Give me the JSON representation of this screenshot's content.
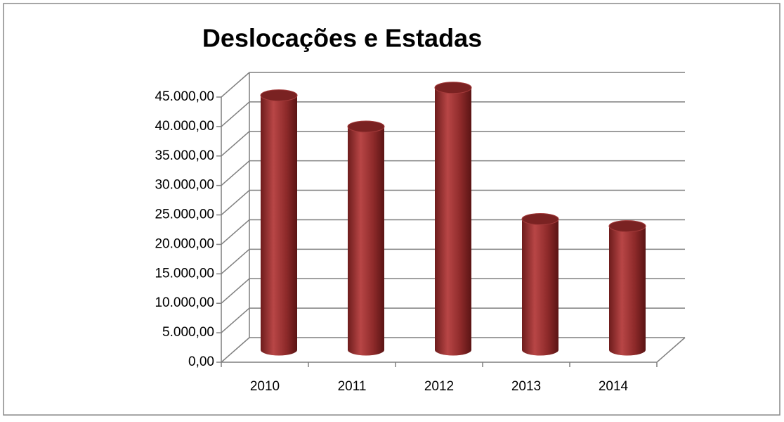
{
  "chart_data": {
    "type": "bar3d",
    "title": "Deslocações e Estadas",
    "categories": [
      "2010",
      "2011",
      "2012",
      "2013",
      "2014"
    ],
    "values": [
      43200,
      37900,
      44500,
      22200,
      21000
    ],
    "color": "#9b2f2f",
    "ylim": [
      0,
      45000
    ],
    "yticks": [
      {
        "value": 0,
        "label": "0,00"
      },
      {
        "value": 5000,
        "label": "5.000,00"
      },
      {
        "value": 10000,
        "label": "10.000,00"
      },
      {
        "value": 15000,
        "label": "15.000,00"
      },
      {
        "value": 20000,
        "label": "20.000,00"
      },
      {
        "value": 25000,
        "label": "25.000,00"
      },
      {
        "value": 30000,
        "label": "30.000,00"
      },
      {
        "value": 35000,
        "label": "35.000,00"
      },
      {
        "value": 40000,
        "label": "40.000,00"
      },
      {
        "value": 45000,
        "label": "45.000,00"
      }
    ],
    "grid": true
  }
}
